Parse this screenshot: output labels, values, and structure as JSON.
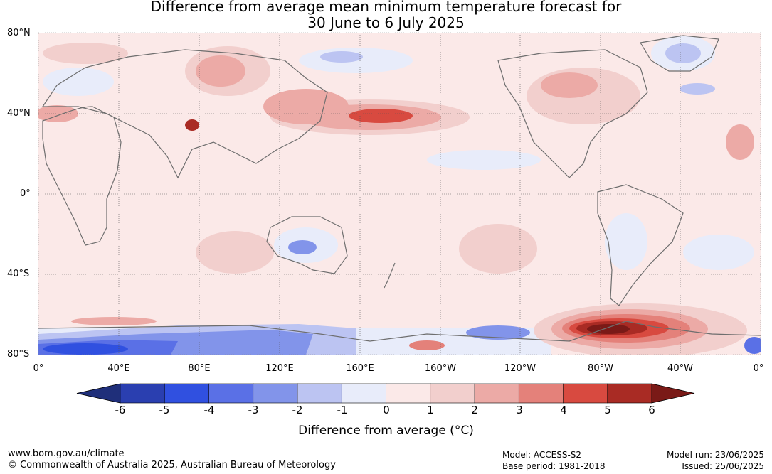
{
  "title_line1": "Difference from average mean minimum temperature forecast for",
  "title_line2": "30 June to 6 July 2025",
  "lat_labels": [
    "80°N",
    "40°N",
    "0°",
    "40°S",
    "80°S"
  ],
  "lon_labels": [
    "0°",
    "40°E",
    "80°E",
    "120°E",
    "160°E",
    "160°W",
    "120°W",
    "80°W",
    "40°W",
    "0°"
  ],
  "colorbar": {
    "title": "Difference from average (",
    "unit": "°C",
    "title_end": ")",
    "tick_labels": [
      "-6",
      "-5",
      "-4",
      "-3",
      "-2",
      "-1",
      "0",
      "1",
      "2",
      "3",
      "4",
      "5",
      "6"
    ],
    "colors": [
      "#1f2f7a",
      "#2a3fb0",
      "#3050e0",
      "#5a70e6",
      "#8294ea",
      "#bcc4f2",
      "#e8ecfa",
      "#fbe9e8",
      "#f2cfcd",
      "#ecaaa6",
      "#e4817a",
      "#d84a40",
      "#a92b24",
      "#7a1a17"
    ]
  },
  "footer": {
    "url": "www.bom.gov.au/climate",
    "copyright": "© Commonwealth of Australia 2025, Australian Bureau of Meteorology",
    "model": "Model: ACCESS-S2",
    "base_period": "Base period: 1981-2018",
    "model_run": "Model run: 23/06/2025",
    "issued": "Issued: 25/06/2025"
  }
}
